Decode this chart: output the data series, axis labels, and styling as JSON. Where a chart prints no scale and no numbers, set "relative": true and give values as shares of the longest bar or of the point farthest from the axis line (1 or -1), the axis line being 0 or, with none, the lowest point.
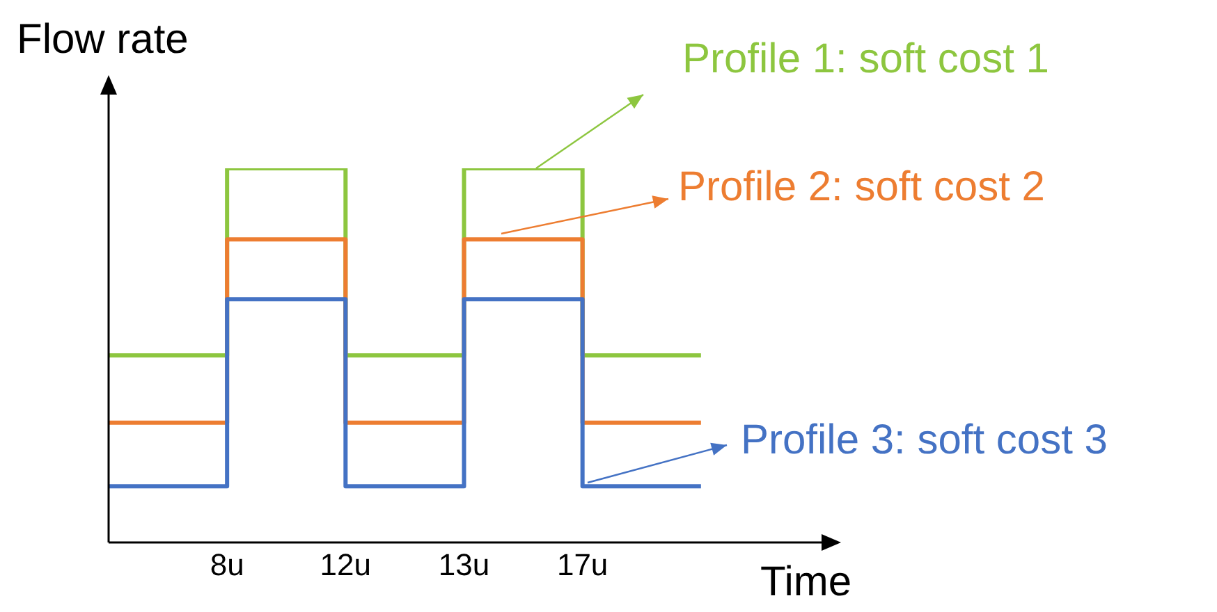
{
  "chart_data": {
    "type": "step",
    "relative": true,
    "xlabel": "Time",
    "ylabel": "Flow rate",
    "categories": [
      null,
      "8u",
      "12u",
      "13u",
      "17u",
      null
    ],
    "marker": "none",
    "line_style": "solid",
    "grid": false,
    "legend": "right",
    "series": [
      {
        "name": "Profile 1: soft cost 1",
        "color": "#8dc63f",
        "values": [
          0.5,
          1,
          0.5,
          1,
          0.5,
          0.5
        ]
      },
      {
        "name": "Profile 2: soft cost 2",
        "color": "#ed7d31",
        "values": [
          0.32,
          0.81,
          0.32,
          0.81,
          0.32,
          0.32
        ]
      },
      {
        "name": "Profile 3: soft cost 3",
        "color": "#4472c4",
        "values": [
          0.15,
          0.65,
          0.15,
          0.65,
          0.15,
          0.15
        ]
      }
    ]
  }
}
